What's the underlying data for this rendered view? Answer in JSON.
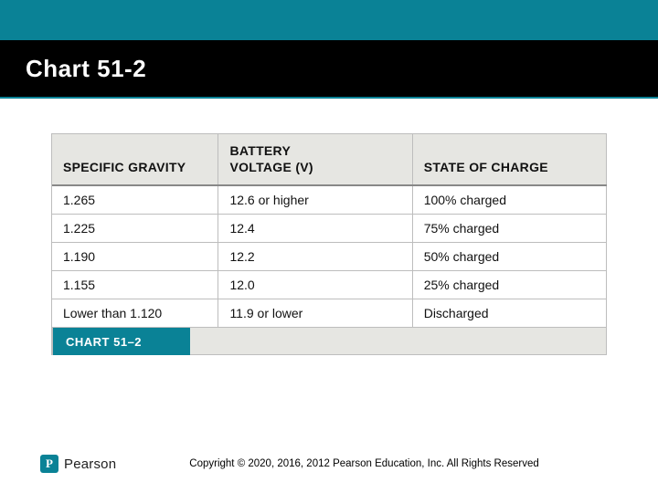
{
  "colors": {
    "teal": "#0a8296",
    "black": "#000000",
    "header_bg": "#e6e6e2",
    "grid": "#bdbdbd",
    "text": "#111111",
    "white": "#ffffff"
  },
  "slide": {
    "title": "Chart 51-2"
  },
  "table": {
    "type": "table",
    "columns": [
      {
        "label": "SPECIFIC GRAVITY",
        "width_pct": 30
      },
      {
        "label": "BATTERY\nVOLTAGE (V)",
        "width_pct": 35
      },
      {
        "label": "STATE OF CHARGE",
        "width_pct": 35
      }
    ],
    "rows": [
      [
        "1.265",
        "12.6 or higher",
        "100% charged"
      ],
      [
        "1.225",
        "12.4",
        "75% charged"
      ],
      [
        "1.190",
        "12.2",
        "50% charged"
      ],
      [
        "1.155",
        "12.0",
        "25% charged"
      ],
      [
        "Lower than 1.120",
        "11.9 or lower",
        "Discharged"
      ]
    ],
    "footer_label": "CHART 51–2",
    "header_fontsize": 14,
    "cell_fontsize": 14,
    "header_weight": 800
  },
  "brand": {
    "badge_letter": "P",
    "name": "Pearson"
  },
  "copyright": "Copyright © 2020, 2016, 2012 Pearson Education, Inc. All Rights Reserved"
}
